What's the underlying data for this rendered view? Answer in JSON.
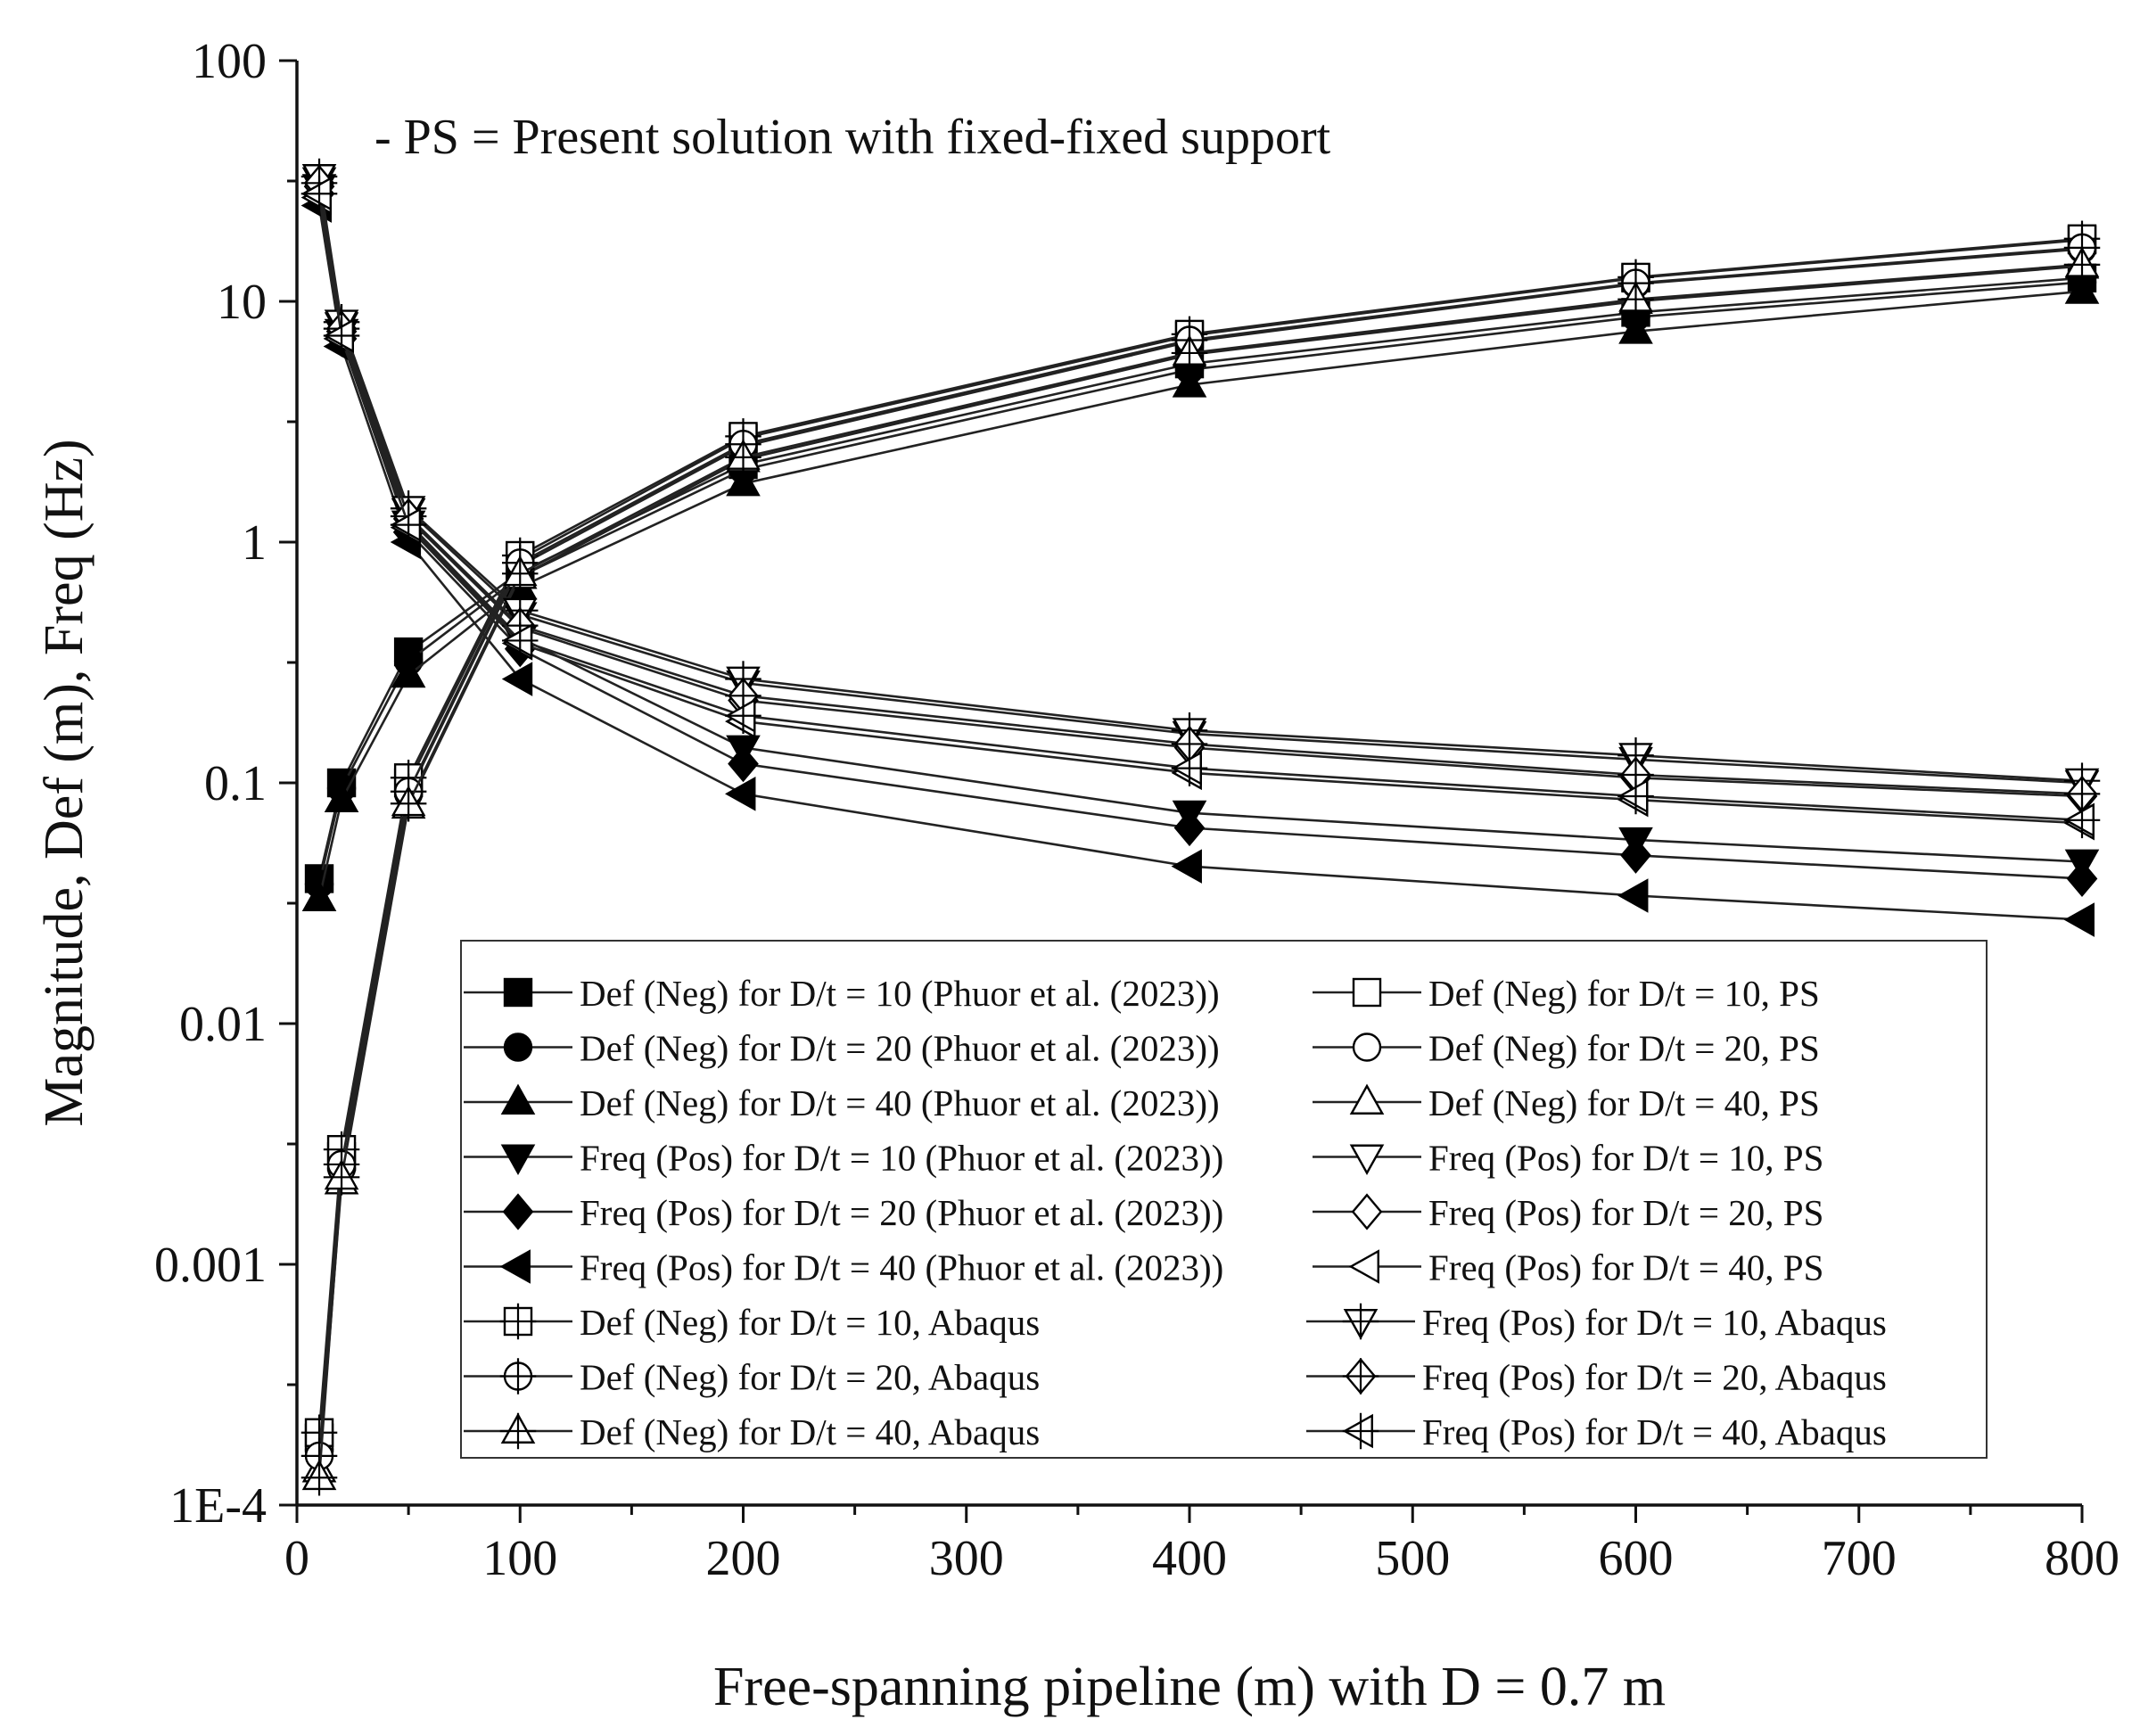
{
  "chart_data": {
    "type": "line",
    "title": "",
    "annotation": "- PS = Present solution with fixed-fixed support",
    "xlabel": "Free-spanning pipeline (m) with D = 0.7 m",
    "ylabel": "Magnitude, Def (m), Freq (Hz)",
    "xlim": [
      0,
      800
    ],
    "ylim": [
      0.0001,
      100
    ],
    "yscale": "log",
    "x_ticks": [
      0,
      100,
      200,
      300,
      400,
      500,
      600,
      700,
      800
    ],
    "x_tick_labels": [
      "0",
      "100",
      "200",
      "300",
      "400",
      "500",
      "600",
      "700",
      "800"
    ],
    "y_ticks": [
      0.0001,
      0.001,
      0.01,
      0.1,
      1,
      10,
      100
    ],
    "y_tick_labels": [
      "1E-4",
      "0.001",
      "0.01",
      "0.1",
      "1",
      "10",
      "100"
    ],
    "x": [
      10,
      20,
      50,
      100,
      200,
      400,
      600,
      800
    ],
    "series": [
      {
        "name": "Def (Neg) for D/t = 10 (Phuor et al. (2023))",
        "marker": "square-filled",
        "x": [
          10,
          20,
          50,
          100,
          200,
          400,
          600,
          800
        ],
        "values": [
          0.04,
          0.1,
          0.35,
          0.75,
          2.1,
          5.5,
          9.0,
          12.5
        ]
      },
      {
        "name": "Def (Neg) for D/t = 20 (Phuor et al. (2023))",
        "marker": "circle-filled",
        "x": [
          10,
          20,
          50,
          100,
          200,
          400,
          600,
          800
        ],
        "values": [
          0.038,
          0.095,
          0.32,
          0.72,
          2.0,
          5.2,
          8.6,
          12.0
        ]
      },
      {
        "name": "Def (Neg) for D/t = 40 (Phuor et al. (2023))",
        "marker": "triangle-up-filled",
        "x": [
          10,
          20,
          50,
          100,
          200,
          400,
          600,
          800
        ],
        "values": [
          0.033,
          0.085,
          0.28,
          0.65,
          1.75,
          4.5,
          7.5,
          11.0
        ]
      },
      {
        "name": "Freq (Pos) for D/t = 10 (Phuor et al. (2023))",
        "marker": "triangle-down-filled",
        "x": [
          10,
          20,
          50,
          100,
          200,
          400,
          600,
          800
        ],
        "values": [
          30,
          7.5,
          1.2,
          0.4,
          0.14,
          0.075,
          0.058,
          0.047
        ]
      },
      {
        "name": "Freq (Pos) for D/t = 20 (Phuor et al. (2023))",
        "marker": "diamond-filled",
        "x": [
          10,
          20,
          50,
          100,
          200,
          400,
          600,
          800
        ],
        "values": [
          28,
          7.0,
          1.1,
          0.36,
          0.12,
          0.065,
          0.05,
          0.04
        ]
      },
      {
        "name": "Freq (Pos) for D/t = 40 (Phuor et al. (2023))",
        "marker": "triangle-left-filled",
        "x": [
          10,
          20,
          50,
          100,
          200,
          400,
          600,
          800
        ],
        "values": [
          25,
          6.5,
          1.0,
          0.27,
          0.09,
          0.045,
          0.034,
          0.027
        ]
      },
      {
        "name": "Def (Neg) for D/t = 10, PS",
        "marker": "square-open",
        "x": [
          10,
          20,
          50,
          100,
          200,
          400,
          600,
          800
        ],
        "values": [
          0.00019,
          0.0028,
          0.1,
          0.85,
          2.7,
          7.2,
          12.5,
          18.0
        ]
      },
      {
        "name": "Def (Neg) for D/t = 20, PS",
        "marker": "circle-open",
        "x": [
          10,
          20,
          50,
          100,
          200,
          400,
          600,
          800
        ],
        "values": [
          0.00017,
          0.0025,
          0.09,
          0.8,
          2.5,
          6.8,
          11.8,
          16.5
        ]
      },
      {
        "name": "Def (Neg) for D/t = 40, PS",
        "marker": "triangle-up-open",
        "x": [
          10,
          20,
          50,
          100,
          200,
          400,
          600,
          800
        ],
        "values": [
          0.00014,
          0.0022,
          0.08,
          0.72,
          2.2,
          6.0,
          10.0,
          14.0
        ]
      },
      {
        "name": "Freq (Pos) for D/t = 10, PS",
        "marker": "triangle-down-open",
        "x": [
          10,
          20,
          50,
          100,
          200,
          400,
          600,
          800
        ],
        "values": [
          32,
          8.0,
          1.35,
          0.5,
          0.26,
          0.16,
          0.125,
          0.1
        ]
      },
      {
        "name": "Freq (Pos) for D/t = 20, PS",
        "marker": "diamond-open",
        "x": [
          10,
          20,
          50,
          100,
          200,
          400,
          600,
          800
        ],
        "values": [
          30,
          7.5,
          1.25,
          0.44,
          0.22,
          0.14,
          0.105,
          0.088
        ]
      },
      {
        "name": "Freq (Pos) for D/t = 40, PS",
        "marker": "triangle-left-open",
        "x": [
          10,
          20,
          50,
          100,
          200,
          400,
          600,
          800
        ],
        "values": [
          27,
          7.0,
          1.15,
          0.38,
          0.18,
          0.11,
          0.085,
          0.068
        ]
      },
      {
        "name": "Def (Neg) for D/t = 10, Abaqus",
        "marker": "square-plus",
        "x": [
          10,
          20,
          50,
          100,
          200,
          400,
          600,
          800
        ],
        "values": [
          0.0002,
          0.003,
          0.105,
          0.88,
          2.75,
          7.3,
          12.6,
          18.2
        ]
      },
      {
        "name": "Def (Neg) for D/t = 20, Abaqus",
        "marker": "circle-plus",
        "x": [
          10,
          20,
          50,
          100,
          200,
          400,
          600,
          800
        ],
        "values": [
          0.00016,
          0.0026,
          0.092,
          0.82,
          2.55,
          6.9,
          11.9,
          16.7
        ]
      },
      {
        "name": "Def (Neg) for D/t = 40, Abaqus",
        "marker": "triangle-up-plus",
        "x": [
          10,
          20,
          50,
          100,
          200,
          400,
          600,
          800
        ],
        "values": [
          0.00013,
          0.0023,
          0.082,
          0.74,
          2.25,
          6.1,
          10.2,
          14.2
        ]
      },
      {
        "name": "Freq (Pos) for D/t = 10, Abaqus",
        "marker": "triangle-down-plus",
        "x": [
          10,
          20,
          50,
          100,
          200,
          400,
          600,
          800
        ],
        "values": [
          33,
          8.2,
          1.38,
          0.52,
          0.27,
          0.165,
          0.13,
          0.102
        ]
      },
      {
        "name": "Freq (Pos) for D/t = 20, Abaqus",
        "marker": "diamond-plus",
        "x": [
          10,
          20,
          50,
          100,
          200,
          400,
          600,
          800
        ],
        "values": [
          31,
          7.7,
          1.28,
          0.45,
          0.23,
          0.145,
          0.108,
          0.09
        ]
      },
      {
        "name": "Freq (Pos) for D/t = 40, Abaqus",
        "marker": "triangle-left-plus",
        "x": [
          10,
          20,
          50,
          100,
          200,
          400,
          600,
          800
        ],
        "values": [
          28,
          7.2,
          1.18,
          0.39,
          0.19,
          0.115,
          0.088,
          0.07
        ]
      }
    ],
    "legend": {
      "placement": "bottom-right",
      "columns": 2
    },
    "grid": false
  }
}
